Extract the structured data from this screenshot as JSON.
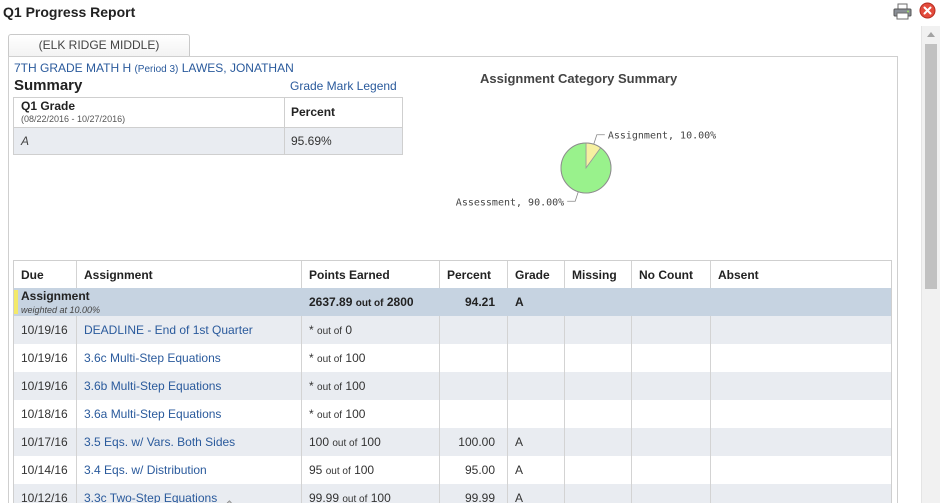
{
  "window": {
    "title": "Q1 Progress Report"
  },
  "tab": {
    "label": "(ELK RIDGE MIDDLE)"
  },
  "course": {
    "name": "7TH GRADE MATH H",
    "period": "(Period 3)",
    "teacher": "LAWES, JONATHAN"
  },
  "summary": {
    "title": "Summary",
    "legend_link": "Grade Mark Legend",
    "grade_header": "Q1 Grade",
    "date_range": "(08/22/2016 - 10/27/2016)",
    "percent_header": "Percent",
    "grade_value": "A",
    "percent_value": "95.69%"
  },
  "chart_data": {
    "type": "pie",
    "title": "Assignment Category Summary",
    "slices": [
      {
        "label": "Assessment, 90.00%",
        "value": 90.0,
        "color": "#99f28c"
      },
      {
        "label": "Assignment, 10.00%",
        "value": 10.0,
        "color": "#f6f0a0"
      }
    ]
  },
  "table": {
    "headers": {
      "due": "Due",
      "assignment": "Assignment",
      "points": "Points Earned",
      "percent": "Percent",
      "grade": "Grade",
      "missing": "Missing",
      "nocount": "No Count",
      "absent": "Absent"
    },
    "category": {
      "name": "Assignment",
      "weight": "weighted at 10.00%",
      "earned": "2637.89",
      "out_of_label": "out of",
      "possible": "2800",
      "percent": "94.21",
      "grade": "A"
    },
    "rows": [
      {
        "due": "10/19/16",
        "name": "DEADLINE - End of 1st Quarter",
        "earned": "*",
        "out_of": "out of",
        "possible": "0",
        "percent": "",
        "grade": ""
      },
      {
        "due": "10/19/16",
        "name": "3.6c Multi-Step Equations",
        "earned": "*",
        "out_of": "out of",
        "possible": "100",
        "percent": "",
        "grade": ""
      },
      {
        "due": "10/19/16",
        "name": "3.6b Multi-Step Equations",
        "earned": "*",
        "out_of": "out of",
        "possible": "100",
        "percent": "",
        "grade": ""
      },
      {
        "due": "10/18/16",
        "name": "3.6a Multi-Step Equations",
        "earned": "*",
        "out_of": "out of",
        "possible": "100",
        "percent": "",
        "grade": ""
      },
      {
        "due": "10/17/16",
        "name": "3.5 Eqs. w/ Vars. Both Sides",
        "earned": "100",
        "out_of": "out of",
        "possible": "100",
        "percent": "100.00",
        "grade": "A"
      },
      {
        "due": "10/14/16",
        "name": "3.4 Eqs. w/ Distribution",
        "earned": "95",
        "out_of": "out of",
        "possible": "100",
        "percent": "95.00",
        "grade": "A"
      },
      {
        "due": "10/12/16",
        "name": "3.3c Two-Step Equations",
        "earned": "99.99",
        "out_of": "out of",
        "possible": "100",
        "percent": "99.99",
        "grade": "A"
      }
    ]
  }
}
